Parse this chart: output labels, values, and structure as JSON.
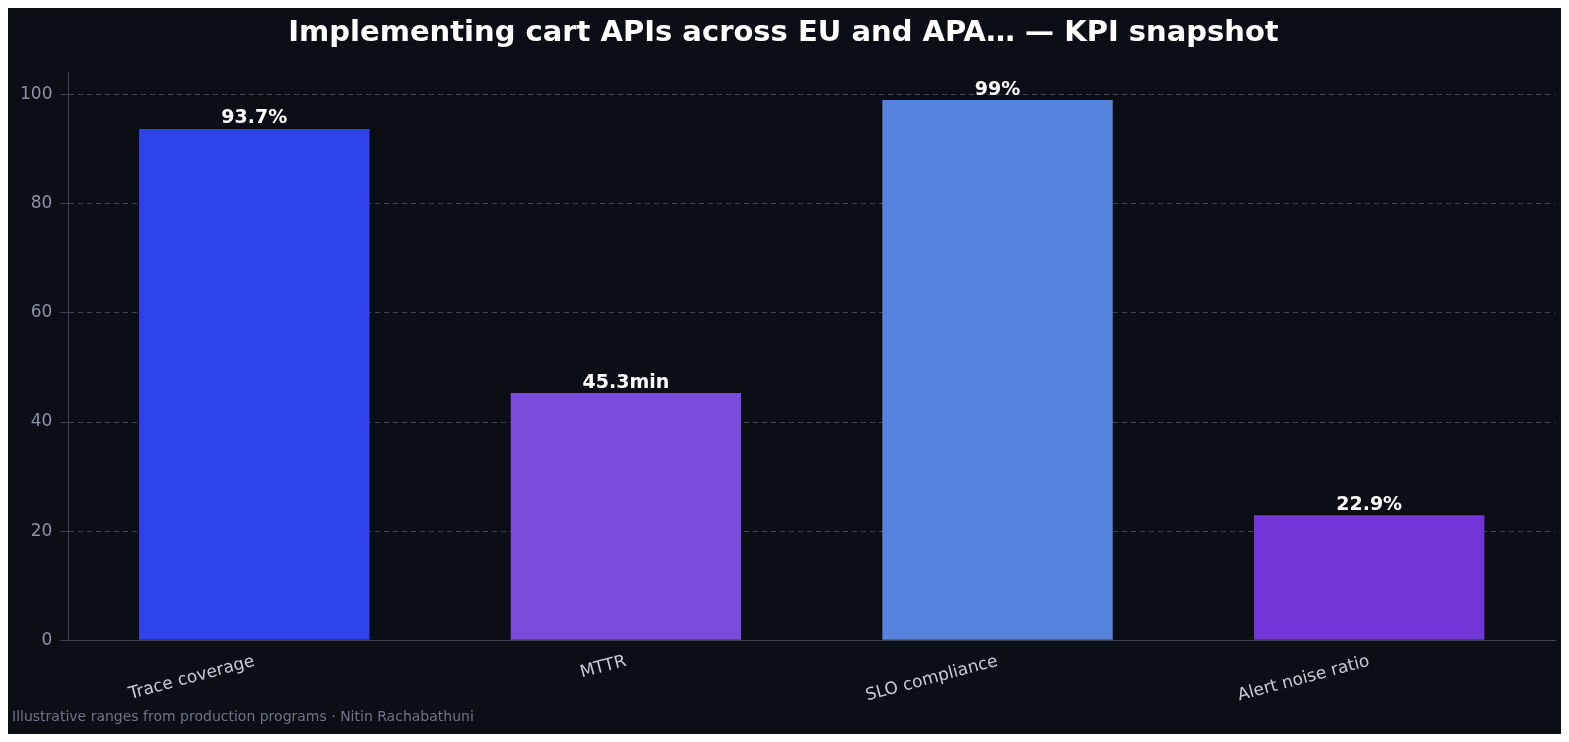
{
  "chart_data": {
    "type": "bar",
    "title": "Implementing cart APIs across EU and APA… — KPI snapshot",
    "categories": [
      "Trace coverage",
      "MTTR",
      "SLO compliance",
      "Alert noise ratio"
    ],
    "values": [
      93.7,
      45.3,
      99,
      22.9
    ],
    "colors": [
      "#2f43ec",
      "#7b4cdc",
      "#5583de",
      "#7235d8"
    ],
    "value_labels": [
      "93.7%",
      "45.3min",
      "99%",
      "22.9%"
    ],
    "ylim": [
      0,
      104
    ],
    "yticks": [
      0,
      20,
      40,
      60,
      80,
      100
    ],
    "grid": "y",
    "legend": false,
    "annotations": [
      "Illustrative ranges from production programs · Nitin Rachabathuni"
    ]
  }
}
